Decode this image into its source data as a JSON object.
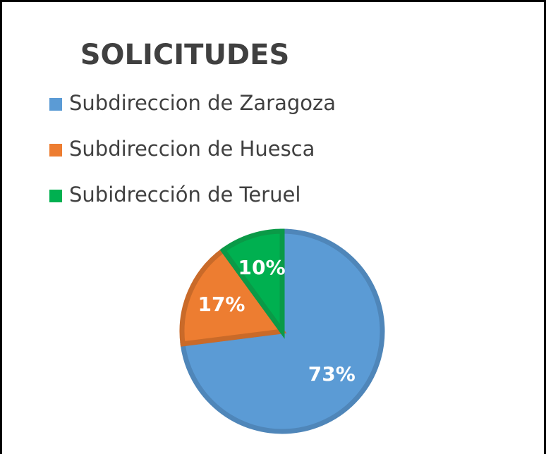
{
  "chart_data": {
    "type": "pie",
    "title": "SOLICITUDES",
    "categories": [
      "Subdireccion de Zaragoza",
      "Subdireccion de Huesca",
      "Subidrección de Teruel"
    ],
    "values": [
      73,
      17,
      10
    ],
    "value_labels": [
      "73%",
      "17%",
      "10%"
    ],
    "colors": [
      "#5b9bd5",
      "#ed7d31",
      "#00b050"
    ],
    "edge_colors": [
      "#4f86b9",
      "#c96a29",
      "#0a9a47"
    ],
    "legend": "top-left"
  }
}
